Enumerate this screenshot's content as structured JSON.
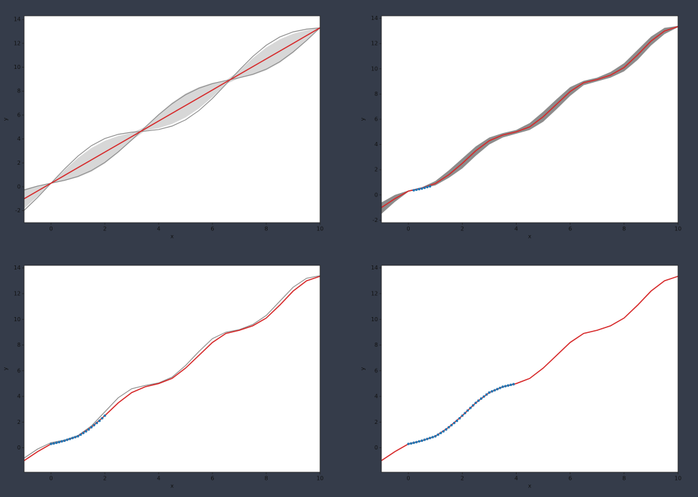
{
  "chart_data": [
    {
      "type": "line",
      "xlabel": "x",
      "ylabel": "y",
      "xlim": [
        -1,
        10
      ],
      "ylim": [
        -3,
        14.3
      ],
      "xticks": [
        0,
        2,
        4,
        6,
        8,
        10
      ],
      "yticks": [
        -2,
        0,
        2,
        4,
        6,
        8,
        10,
        12,
        14
      ],
      "x": [
        -1,
        -0.5,
        0,
        0.5,
        1,
        1.5,
        2,
        2.5,
        3,
        3.5,
        4,
        4.5,
        5,
        5.5,
        6,
        6.5,
        7,
        7.5,
        8,
        8.5,
        9,
        9.5,
        10
      ],
      "band": {
        "color": "#d3d3d3",
        "upper": [
          -0.19,
          0.1,
          0.3,
          1.4,
          2.41,
          3.24,
          3.85,
          4.25,
          4.51,
          5.01,
          6.09,
          7.04,
          7.8,
          8.34,
          8.69,
          8.9,
          9.71,
          10.76,
          11.65,
          12.33,
          12.8,
          13.1,
          13.3
        ],
        "lower": [
          -1.81,
          -0.8,
          0.3,
          0.5,
          0.79,
          1.26,
          1.95,
          2.85,
          3.89,
          4.69,
          4.91,
          5.26,
          5.8,
          6.56,
          7.51,
          8.6,
          9.09,
          9.34,
          9.75,
          10.37,
          11.2,
          12.2,
          13.3
        ]
      },
      "series": [
        {
          "color": "#8c8c8c",
          "values": [
            -1.97,
            -0.89,
            0.3,
            1.49,
            2.57,
            3.44,
            4.04,
            4.39,
            4.57,
            4.66,
            4.79,
            5.08,
            5.6,
            6.38,
            7.39,
            8.57,
            9.77,
            10.9,
            11.84,
            12.53,
            12.96,
            13.19,
            13.3
          ]
        },
        {
          "color": "#8c8c8c",
          "values": [
            -0.27,
            0.06,
            0.3,
            0.54,
            0.87,
            1.36,
            2.04,
            2.92,
            3.92,
            4.99,
            6.03,
            6.95,
            7.7,
            8.25,
            8.63,
            8.89,
            9.12,
            9.41,
            9.84,
            10.46,
            11.28,
            12.24,
            13.3
          ]
        },
        {
          "color": "#d62728",
          "values": [
            -1.0,
            -0.35,
            0.3,
            0.95,
            1.6,
            2.25,
            2.9,
            3.55,
            4.2,
            4.85,
            5.5,
            6.15,
            6.8,
            7.45,
            8.1,
            8.75,
            9.4,
            10.05,
            10.7,
            11.35,
            12.0,
            12.65,
            13.3
          ]
        }
      ]
    },
    {
      "type": "line",
      "xlabel": "x",
      "ylabel": "y",
      "xlim": [
        -1,
        10
      ],
      "ylim": [
        -2.2,
        14.2
      ],
      "xticks": [
        0,
        2,
        4,
        6,
        8,
        10
      ],
      "yticks": [
        -2,
        0,
        2,
        4,
        6,
        8,
        10,
        12,
        14
      ],
      "x": [
        -1,
        -0.5,
        0,
        0.5,
        1,
        1.5,
        2,
        2.5,
        3,
        3.5,
        4,
        4.5,
        5,
        5.5,
        6,
        6.5,
        7,
        7.5,
        8,
        8.5,
        9,
        9.5,
        10
      ],
      "band": {
        "color": "#7f7f7f",
        "upper": [
          -0.6,
          0.0,
          0.35,
          0.6,
          1.1,
          1.95,
          2.9,
          3.85,
          4.55,
          4.9,
          5.15,
          5.7,
          6.6,
          7.6,
          8.55,
          9.05,
          9.3,
          9.75,
          10.45,
          11.5,
          12.55,
          13.25,
          13.4
        ],
        "lower": [
          -1.5,
          -0.55,
          0.25,
          0.5,
          0.75,
          1.35,
          2.1,
          3.1,
          4.0,
          4.55,
          4.85,
          5.15,
          5.8,
          6.8,
          7.85,
          8.7,
          9.0,
          9.3,
          9.8,
          10.7,
          11.85,
          12.75,
          13.3
        ]
      },
      "series": [
        {
          "color": "#d62728",
          "values": [
            -1,
            -0.3,
            0.3,
            0.55,
            0.9,
            1.6,
            2.5,
            3.5,
            4.3,
            4.75,
            5.0,
            5.4,
            6.2,
            7.2,
            8.2,
            8.9,
            9.15,
            9.5,
            10.1,
            11.1,
            12.2,
            13.0,
            13.35
          ]
        }
      ],
      "points": {
        "color": "#1f77b4",
        "x": [
          0.2,
          0.3,
          0.4,
          0.5,
          0.6,
          0.7,
          0.8
        ],
        "y": [
          0.37,
          0.41,
          0.46,
          0.5,
          0.56,
          0.62,
          0.68
        ]
      }
    },
    {
      "type": "line",
      "xlabel": "x",
      "ylabel": "y",
      "xlim": [
        -1,
        10
      ],
      "ylim": [
        -1.9,
        14.2
      ],
      "xticks": [
        0,
        2,
        4,
        6,
        8,
        10
      ],
      "yticks": [
        0,
        2,
        4,
        6,
        8,
        10,
        12,
        14
      ],
      "x": [
        -1,
        -0.5,
        0,
        0.5,
        1,
        1.5,
        2,
        2.5,
        3,
        3.5,
        4,
        4.5,
        5,
        5.5,
        6,
        6.5,
        7,
        7.5,
        8,
        8.5,
        9,
        9.5,
        10
      ],
      "series": [
        {
          "color": "#8c8c8c",
          "values": [
            -0.8,
            -0.1,
            0.4,
            0.6,
            0.95,
            1.7,
            2.8,
            3.9,
            4.6,
            4.85,
            5.05,
            5.5,
            6.4,
            7.5,
            8.5,
            9.0,
            9.2,
            9.6,
            10.3,
            11.4,
            12.5,
            13.2,
            13.4
          ]
        },
        {
          "color": "#d62728",
          "values": [
            -1,
            -0.3,
            0.3,
            0.55,
            0.9,
            1.6,
            2.5,
            3.5,
            4.3,
            4.75,
            5.0,
            5.4,
            6.2,
            7.2,
            8.2,
            8.9,
            9.15,
            9.5,
            10.1,
            11.1,
            12.2,
            13.0,
            13.35
          ]
        }
      ],
      "points": {
        "color": "#1f77b4",
        "x": [
          0,
          0.1,
          0.2,
          0.3,
          0.4,
          0.5,
          0.6,
          0.7,
          0.8,
          0.9,
          1,
          1.1,
          1.2,
          1.3,
          1.4,
          1.5,
          1.6,
          1.7,
          1.8,
          1.9,
          2
        ],
        "y": [
          0.3,
          0.34,
          0.39,
          0.44,
          0.5,
          0.55,
          0.62,
          0.69,
          0.76,
          0.83,
          0.9,
          1.02,
          1.15,
          1.28,
          1.43,
          1.6,
          1.76,
          1.93,
          2.1,
          2.3,
          2.5
        ]
      }
    },
    {
      "type": "line",
      "xlabel": "x",
      "ylabel": "y",
      "xlim": [
        -1,
        10
      ],
      "ylim": [
        -1.9,
        14.2
      ],
      "xticks": [
        0,
        2,
        4,
        6,
        8,
        10
      ],
      "yticks": [
        0,
        2,
        4,
        6,
        8,
        10,
        12,
        14
      ],
      "x": [
        -1,
        -0.5,
        0,
        0.5,
        1,
        1.5,
        2,
        2.5,
        3,
        3.5,
        4,
        4.5,
        5,
        5.5,
        6,
        6.5,
        7,
        7.5,
        8,
        8.5,
        9,
        9.5,
        10
      ],
      "series": [
        {
          "color": "#d62728",
          "values": [
            -1,
            -0.3,
            0.3,
            0.55,
            0.9,
            1.6,
            2.5,
            3.5,
            4.3,
            4.75,
            5.0,
            5.4,
            6.2,
            7.2,
            8.2,
            8.9,
            9.15,
            9.5,
            10.1,
            11.1,
            12.2,
            13.0,
            13.35
          ]
        }
      ],
      "points": {
        "color": "#1f77b4",
        "x": [
          0,
          0.1,
          0.2,
          0.3,
          0.4,
          0.5,
          0.6,
          0.7,
          0.8,
          0.9,
          1,
          1.1,
          1.2,
          1.3,
          1.4,
          1.5,
          1.6,
          1.7,
          1.8,
          1.9,
          2,
          2.1,
          2.2,
          2.3,
          2.4,
          2.5,
          2.6,
          2.7,
          2.8,
          2.9,
          3,
          3.1,
          3.2,
          3.3,
          3.4,
          3.5,
          3.6,
          3.7,
          3.8,
          3.9
        ],
        "y": [
          0.3,
          0.34,
          0.39,
          0.44,
          0.5,
          0.55,
          0.62,
          0.69,
          0.76,
          0.83,
          0.9,
          1.02,
          1.15,
          1.28,
          1.43,
          1.6,
          1.76,
          1.93,
          2.1,
          2.3,
          2.5,
          2.7,
          2.9,
          3.1,
          3.3,
          3.5,
          3.67,
          3.83,
          3.99,
          4.15,
          4.3,
          4.39,
          4.48,
          4.57,
          4.66,
          4.75,
          4.8,
          4.85,
          4.9,
          4.95
        ]
      }
    }
  ]
}
